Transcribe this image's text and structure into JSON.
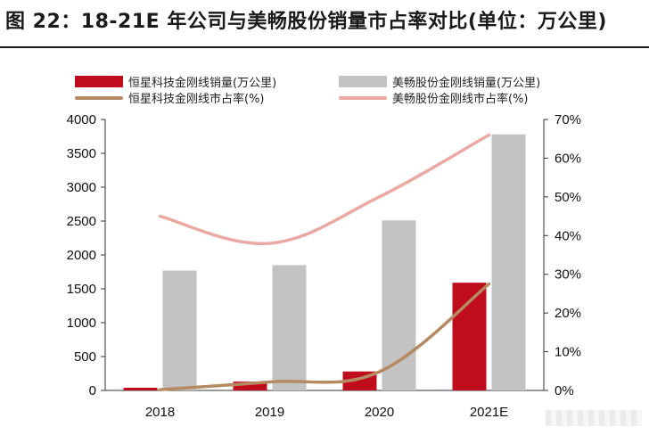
{
  "chart_data": {
    "type": "bar",
    "title": "图 22：18-21E 年公司与美畅股份销量市占率对比(单位：万公里)",
    "categories": [
      "2018",
      "2019",
      "2020",
      "2021E"
    ],
    "series": [
      {
        "name": "恒星科技金刚线销量(万公里)",
        "kind": "bar",
        "axis": "left",
        "color": "#c00d1e",
        "values": [
          40,
          130,
          280,
          1590
        ]
      },
      {
        "name": "美畅股份金刚线销量(万公里)",
        "kind": "bar",
        "axis": "left",
        "color": "#c3c3c3",
        "values": [
          1770,
          1850,
          2510,
          3780
        ]
      },
      {
        "name": "恒星科技金刚线市占率(%)",
        "kind": "line",
        "axis": "right",
        "color": "#b58a63",
        "values": [
          0.2,
          2.2,
          4.8,
          27.5
        ]
      },
      {
        "name": "美畅股份金刚线市占率(%)",
        "kind": "line",
        "axis": "right",
        "color": "#eaaaa3",
        "values": [
          45,
          38,
          50,
          66
        ]
      }
    ],
    "left_axis": {
      "ylim": [
        0,
        4000
      ],
      "ticks": [
        "0",
        "500",
        "1000",
        "1500",
        "2000",
        "2500",
        "3000",
        "3500",
        "4000"
      ]
    },
    "right_axis": {
      "ylim": [
        0,
        70
      ],
      "ticks": [
        "0%",
        "10%",
        "20%",
        "30%",
        "40%",
        "50%",
        "60%",
        "70%"
      ]
    },
    "grid": false,
    "legend_position": "top"
  }
}
